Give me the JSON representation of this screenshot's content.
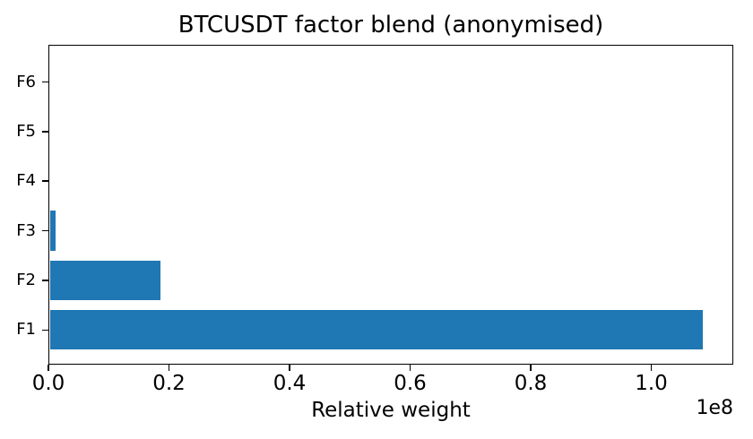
{
  "chart_data": {
    "type": "bar",
    "orientation": "horizontal",
    "title": "BTCUSDT factor blend (anonymised)",
    "xlabel": "Relative weight",
    "ylabel": "",
    "x_offset_label": "1e8",
    "categories": [
      "F1",
      "F2",
      "F3",
      "F4",
      "F5",
      "F6"
    ],
    "values": [
      108300000,
      18300000,
      1000000,
      0,
      0,
      0
    ],
    "xlim": [
      0,
      113600000
    ],
    "xticks": [
      0,
      20000000,
      40000000,
      60000000,
      80000000,
      100000000
    ],
    "xtick_labels": [
      "0.0",
      "0.2",
      "0.4",
      "0.6",
      "0.8",
      "1.0"
    ],
    "bar_color": "#1f77b4",
    "axis_color": "#000000",
    "grid": false,
    "legend_position": "none"
  }
}
